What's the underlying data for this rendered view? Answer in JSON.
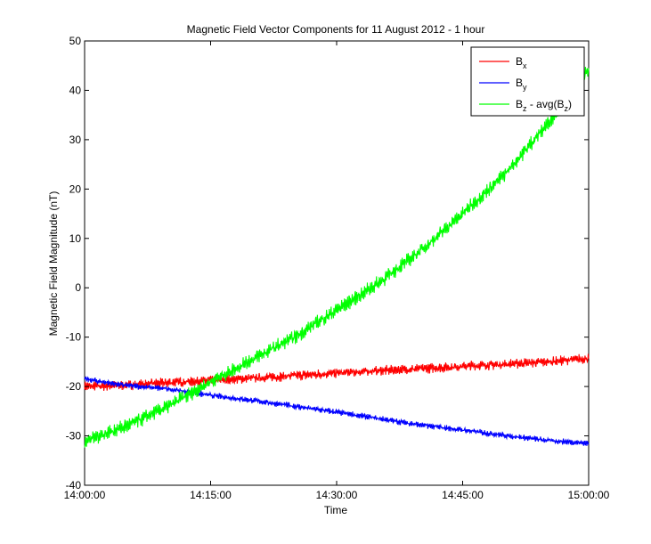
{
  "chart_data": {
    "type": "line",
    "title": "Magnetic Field Vector Components for 11 August 2012 - 1 hour",
    "xlabel": "Time",
    "ylabel": "Magnetic Field Magnitude (nT)",
    "xlim": [
      "14:00:00",
      "15:00:00"
    ],
    "ylim": [
      -40,
      50
    ],
    "xticks": [
      "14:00:00",
      "14:15:00",
      "14:30:00",
      "14:45:00",
      "15:00:00"
    ],
    "yticks": [
      -40,
      -30,
      -20,
      -10,
      0,
      10,
      20,
      30,
      40,
      50
    ],
    "grid": false,
    "legend": {
      "placement": "top-right"
    },
    "x": [
      "14:00:00",
      "14:05:00",
      "14:10:00",
      "14:15:00",
      "14:20:00",
      "14:25:00",
      "14:30:00",
      "14:35:00",
      "14:40:00",
      "14:45:00",
      "14:50:00",
      "14:55:00",
      "15:00:00"
    ],
    "series": [
      {
        "name": "B_x",
        "legend_base": "B",
        "legend_sub": "x",
        "legend_tail": "",
        "color": "#ff0000",
        "noise_amplitude": 1.0,
        "values": [
          -20.0,
          -19.7,
          -19.2,
          -18.8,
          -18.3,
          -17.8,
          -17.3,
          -16.8,
          -16.4,
          -15.9,
          -15.5,
          -15.0,
          -14.3
        ]
      },
      {
        "name": "B_y",
        "legend_base": "B",
        "legend_sub": "y",
        "legend_tail": "",
        "color": "#0000ff",
        "noise_amplitude": 0.6,
        "values": [
          -18.5,
          -19.8,
          -20.5,
          -21.8,
          -22.8,
          -24.0,
          -25.2,
          -26.5,
          -27.8,
          -28.8,
          -29.9,
          -30.9,
          -31.5
        ]
      },
      {
        "name": "B_z - avg(B_z)",
        "legend_base": "B",
        "legend_sub": "z",
        "legend_tail": " - avg(B",
        "legend_sub2": "z",
        "legend_tail2": ")",
        "color": "#00ff00",
        "noise_amplitude": 1.5,
        "values": [
          -31.0,
          -28.0,
          -24.0,
          -19.0,
          -14.5,
          -10.0,
          -4.5,
          1.0,
          7.5,
          15.0,
          23.0,
          33.0,
          44.0
        ]
      }
    ]
  }
}
